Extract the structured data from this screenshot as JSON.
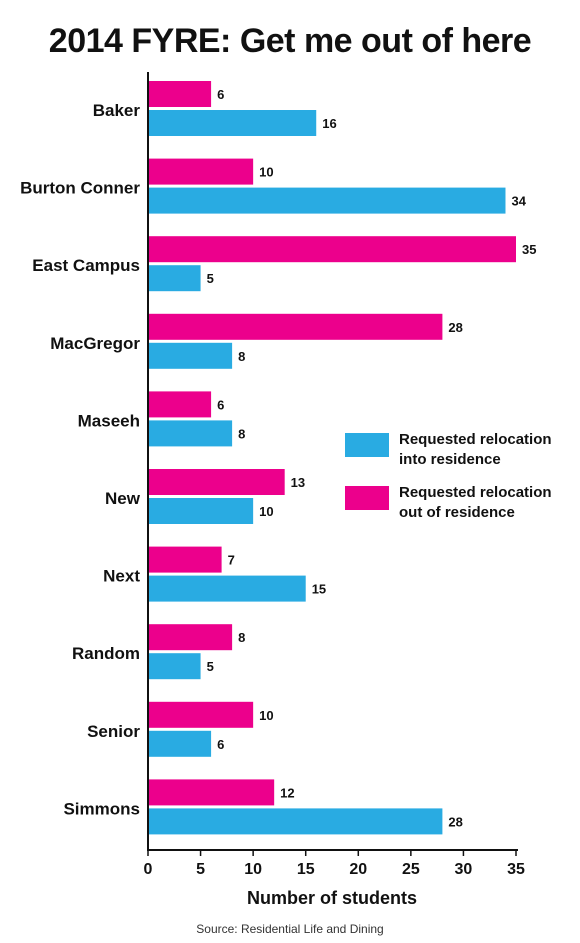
{
  "chart_data": {
    "type": "bar",
    "orientation": "horizontal",
    "title": "2014 FYRE: Get me out of here",
    "xlabel": "Number of students",
    "source": "Source: Residential Life and Dining",
    "categories": [
      "Baker",
      "Burton Conner",
      "East Campus",
      "MacGregor",
      "Maseeh",
      "New",
      "Next",
      "Random",
      "Senior",
      "Simmons"
    ],
    "series": [
      {
        "name": "Requested relocation out of residence",
        "color": "#ec008c",
        "values": [
          6,
          10,
          35,
          28,
          6,
          13,
          7,
          8,
          10,
          12
        ]
      },
      {
        "name": "Requested relocation into residence",
        "color": "#29abe2",
        "values": [
          16,
          34,
          5,
          8,
          8,
          10,
          15,
          5,
          6,
          28
        ]
      }
    ],
    "xlim": [
      0,
      35
    ],
    "xticks": [
      0,
      5,
      10,
      15,
      20,
      25,
      30,
      35
    ],
    "grid": false,
    "legend": {
      "placement": "right",
      "items": [
        {
          "label": "Requested relocation into residence",
          "color": "#29abe2"
        },
        {
          "label": "Requested relocation out of residence",
          "color": "#ec008c"
        }
      ]
    }
  }
}
